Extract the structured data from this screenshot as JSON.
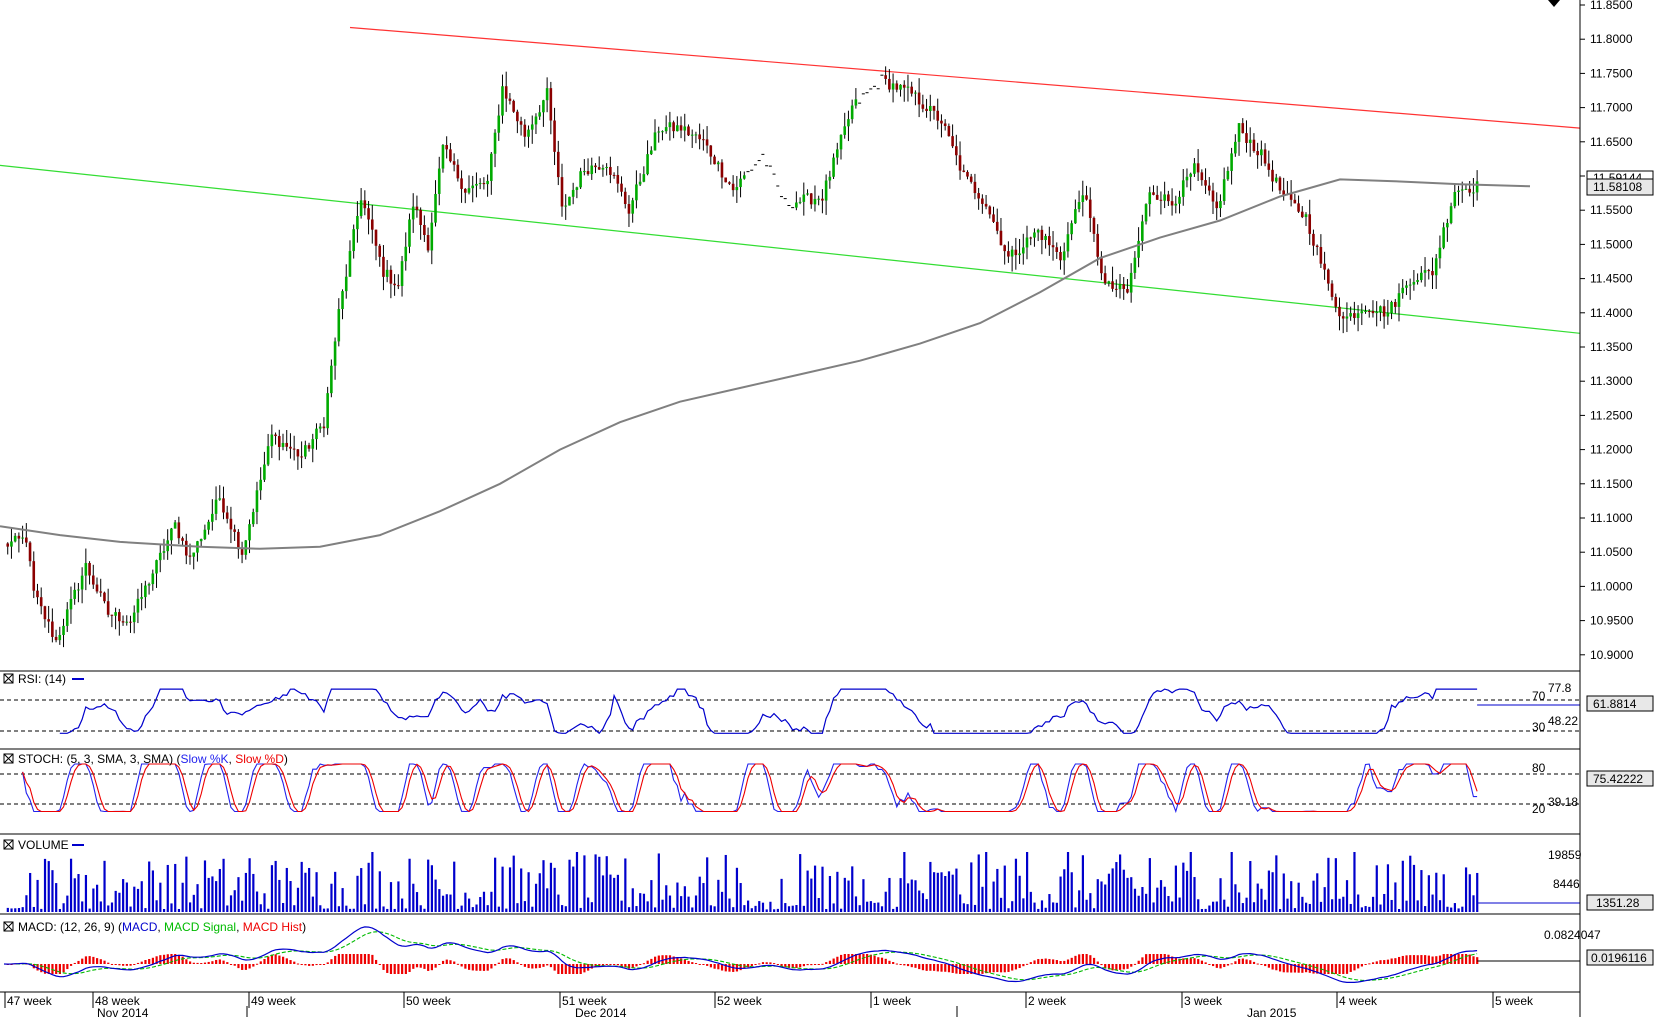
{
  "main": {
    "price_ticks": [
      "11.8500",
      "11.8000",
      "11.7500",
      "11.7000",
      "11.6500",
      "11.6000",
      "11.5500",
      "11.5000",
      "11.4500",
      "11.4000",
      "11.3500",
      "11.3000",
      "11.2500",
      "11.2000",
      "11.1500",
      "11.1000",
      "11.0500",
      "11.0000",
      "10.9500",
      "10.9000"
    ],
    "last_price": "11.58108",
    "ma_value": "11.59144",
    "colors": {
      "up": "#00aa00",
      "down": "#8b0000",
      "resistance": "#ff3333",
      "support": "#33dd33",
      "ma": "#808080"
    }
  },
  "rsi": {
    "title": "RSI: (14)",
    "ticks": [
      "77.8",
      "48.22",
      "70",
      "30"
    ],
    "value": "61.8814",
    "color": "#0000cc"
  },
  "stoch": {
    "title_prefix": "STOCH: (5, 3, SMA, 3, SMA) (",
    "k_label": "Slow %K",
    "sep": ", ",
    "d_label": "Slow %D",
    "title_suffix": ")",
    "ticks": [
      "80",
      "39.18",
      "20"
    ],
    "value": "75.42222",
    "k_color": "#2222ee",
    "d_color": "#ee0000"
  },
  "volume": {
    "title": "VOLUME",
    "ticks": [
      "19859",
      "8446"
    ],
    "value": "1351.28",
    "color": "#0000cc"
  },
  "macd": {
    "title_prefix": "MACD: (12, 26, 9) (",
    "macd_label": "MACD",
    "sep": ", ",
    "signal_label": "MACD Signal",
    "hist_label": "MACD Hist",
    "title_suffix": ")",
    "ticks": [
      "0.0824047"
    ],
    "value": "0.0196116",
    "macd_color": "#0000cc",
    "signal_color": "#00bb00",
    "hist_color": "#ee0000"
  },
  "xaxis": {
    "weeks": [
      "47 week",
      "48 week",
      "49 week",
      "50 week",
      "51 week",
      "52 week",
      "1 week",
      "2 week",
      "3 week",
      "4 week",
      "5 week"
    ],
    "months": [
      "Nov 2014",
      "Dec 2014",
      "Jan 2015"
    ]
  },
  "chart_data": {
    "type": "candlestick",
    "ylim": [
      10.87,
      11.85
    ],
    "support_line": {
      "start": 11.6155,
      "end": 11.37
    },
    "resistance_line": {
      "start": 11.859,
      "end": 11.67
    },
    "keyframes": [
      [
        0,
        11.06
      ],
      [
        6,
        11.07
      ],
      [
        8,
        10.99
      ],
      [
        14,
        10.92
      ],
      [
        22,
        11.03
      ],
      [
        28,
        10.96
      ],
      [
        34,
        10.95
      ],
      [
        46,
        11.09
      ],
      [
        50,
        11.04
      ],
      [
        58,
        11.13
      ],
      [
        64,
        11.05
      ],
      [
        72,
        11.22
      ],
      [
        80,
        11.19
      ],
      [
        86,
        11.24
      ],
      [
        90,
        11.4
      ],
      [
        96,
        11.57
      ],
      [
        102,
        11.46
      ],
      [
        106,
        11.44
      ],
      [
        110,
        11.56
      ],
      [
        114,
        11.5
      ],
      [
        118,
        11.64
      ],
      [
        124,
        11.58
      ],
      [
        130,
        11.59
      ],
      [
        134,
        11.73
      ],
      [
        140,
        11.66
      ],
      [
        146,
        11.72
      ],
      [
        150,
        11.55
      ],
      [
        156,
        11.61
      ],
      [
        162,
        11.62
      ],
      [
        168,
        11.55
      ],
      [
        176,
        11.67
      ],
      [
        182,
        11.67
      ],
      [
        188,
        11.65
      ],
      [
        196,
        11.58
      ],
      [
        204,
        11.63
      ],
      [
        210,
        11.56
      ],
      [
        220,
        11.57
      ],
      [
        228,
        11.7
      ],
      [
        236,
        11.74
      ],
      [
        244,
        11.72
      ],
      [
        252,
        11.68
      ],
      [
        258,
        11.6
      ],
      [
        264,
        11.56
      ],
      [
        270,
        11.48
      ],
      [
        278,
        11.52
      ],
      [
        284,
        11.48
      ],
      [
        290,
        11.58
      ],
      [
        296,
        11.44
      ],
      [
        302,
        11.43
      ],
      [
        308,
        11.58
      ],
      [
        314,
        11.56
      ],
      [
        320,
        11.61
      ],
      [
        326,
        11.55
      ],
      [
        332,
        11.67
      ],
      [
        338,
        11.63
      ],
      [
        344,
        11.57
      ],
      [
        350,
        11.54
      ],
      [
        356,
        11.44
      ],
      [
        360,
        11.39
      ],
      [
        366,
        11.41
      ],
      [
        372,
        11.4
      ],
      [
        378,
        11.45
      ],
      [
        384,
        11.46
      ],
      [
        390,
        11.58
      ],
      [
        396,
        11.585
      ]
    ]
  }
}
